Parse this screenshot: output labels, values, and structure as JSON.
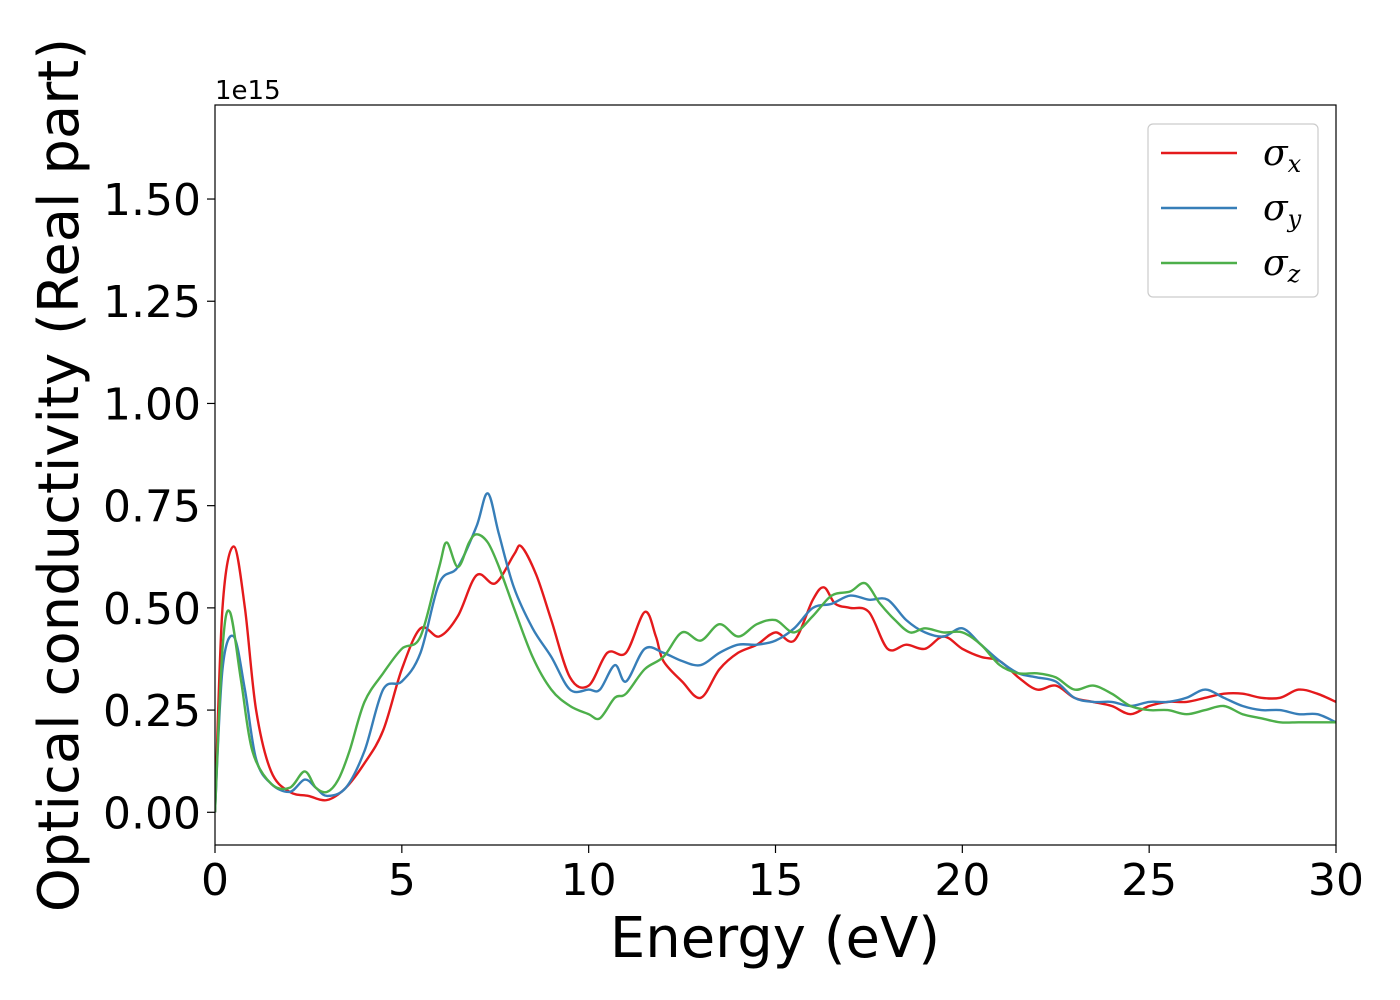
{
  "chart_data": {
    "type": "line",
    "xlabel": "Energy (eV)",
    "ylabel": "Optical conductivity (Real part)",
    "y_offset_label": "1e15",
    "xlim": [
      0,
      30
    ],
    "ylim": [
      -0.08,
      1.73
    ],
    "x_ticks": [
      0,
      5,
      10,
      15,
      20,
      25,
      30
    ],
    "x_tick_labels": [
      "0",
      "5",
      "10",
      "15",
      "20",
      "25",
      "30"
    ],
    "y_ticks": [
      0.0,
      0.25,
      0.5,
      0.75,
      1.0,
      1.25,
      1.5
    ],
    "y_tick_labels": [
      "0.00",
      "0.25",
      "0.50",
      "0.75",
      "1.00",
      "1.25",
      "1.50"
    ],
    "grid": false,
    "legend_position": "top-right",
    "series": [
      {
        "name": "σx",
        "symbol": "σ",
        "subscript": "x",
        "color": "#e41a1c",
        "x": [
          0,
          0.2,
          0.5,
          0.8,
          1.1,
          1.5,
          2.0,
          2.5,
          3.0,
          3.5,
          4.0,
          4.5,
          5.0,
          5.5,
          6.0,
          6.5,
          7.0,
          7.5,
          8.0,
          8.2,
          8.6,
          9.0,
          9.5,
          10.0,
          10.5,
          11.0,
          11.5,
          11.8,
          12.0,
          12.5,
          13.0,
          13.5,
          14.0,
          14.5,
          15.0,
          15.5,
          16.0,
          16.3,
          16.6,
          17.0,
          17.5,
          18.0,
          18.5,
          19.0,
          19.5,
          20.0,
          20.5,
          21.0,
          21.5,
          22.0,
          22.5,
          23.0,
          23.5,
          24.0,
          24.5,
          25.0,
          25.5,
          26.0,
          26.5,
          27.0,
          27.5,
          28.0,
          28.5,
          29.0,
          29.5,
          30.0
        ],
        "y": [
          0.0,
          0.5,
          0.65,
          0.5,
          0.25,
          0.1,
          0.05,
          0.04,
          0.03,
          0.06,
          0.12,
          0.2,
          0.35,
          0.45,
          0.43,
          0.48,
          0.58,
          0.56,
          0.63,
          0.65,
          0.58,
          0.47,
          0.33,
          0.31,
          0.39,
          0.39,
          0.49,
          0.43,
          0.37,
          0.32,
          0.28,
          0.35,
          0.39,
          0.41,
          0.44,
          0.42,
          0.52,
          0.55,
          0.51,
          0.5,
          0.49,
          0.4,
          0.41,
          0.4,
          0.43,
          0.4,
          0.38,
          0.37,
          0.33,
          0.3,
          0.31,
          0.28,
          0.27,
          0.26,
          0.24,
          0.26,
          0.27,
          0.27,
          0.28,
          0.29,
          0.29,
          0.28,
          0.28,
          0.3,
          0.29,
          0.27
        ]
      },
      {
        "name": "σy",
        "symbol": "σ",
        "subscript": "y",
        "color": "#377eb8",
        "x": [
          0,
          0.2,
          0.5,
          0.8,
          1.1,
          1.5,
          2.0,
          2.4,
          2.7,
          3.0,
          3.5,
          4.0,
          4.5,
          5.0,
          5.5,
          6.0,
          6.5,
          7.0,
          7.3,
          7.6,
          8.0,
          8.5,
          9.0,
          9.5,
          10.0,
          10.3,
          10.7,
          11.0,
          11.5,
          12.0,
          12.5,
          13.0,
          13.5,
          14.0,
          14.5,
          15.0,
          15.5,
          16.0,
          16.5,
          17.0,
          17.5,
          18.0,
          18.5,
          19.0,
          19.5,
          20.0,
          20.5,
          21.0,
          21.5,
          22.0,
          22.5,
          23.0,
          23.5,
          24.0,
          24.5,
          25.0,
          25.5,
          26.0,
          26.5,
          27.0,
          27.5,
          28.0,
          28.5,
          29.0,
          29.5,
          30.0
        ],
        "y": [
          0.0,
          0.35,
          0.43,
          0.3,
          0.13,
          0.07,
          0.05,
          0.08,
          0.06,
          0.04,
          0.06,
          0.15,
          0.3,
          0.32,
          0.39,
          0.56,
          0.6,
          0.7,
          0.78,
          0.68,
          0.55,
          0.45,
          0.38,
          0.3,
          0.3,
          0.3,
          0.36,
          0.32,
          0.4,
          0.39,
          0.37,
          0.36,
          0.39,
          0.41,
          0.41,
          0.42,
          0.45,
          0.5,
          0.51,
          0.53,
          0.52,
          0.52,
          0.47,
          0.44,
          0.43,
          0.45,
          0.41,
          0.37,
          0.34,
          0.33,
          0.32,
          0.28,
          0.27,
          0.27,
          0.26,
          0.27,
          0.27,
          0.28,
          0.3,
          0.28,
          0.26,
          0.25,
          0.25,
          0.24,
          0.24,
          0.22
        ]
      },
      {
        "name": "σz",
        "symbol": "σ",
        "subscript": "z",
        "color": "#4daf4a",
        "x": [
          0,
          0.2,
          0.4,
          0.7,
          1.0,
          1.5,
          2.0,
          2.4,
          2.7,
          3.0,
          3.3,
          3.6,
          4.0,
          4.5,
          5.0,
          5.5,
          6.0,
          6.2,
          6.5,
          6.8,
          7.0,
          7.3,
          7.6,
          8.0,
          8.5,
          9.0,
          9.5,
          10.0,
          10.3,
          10.7,
          11.0,
          11.5,
          12.0,
          12.5,
          13.0,
          13.5,
          14.0,
          14.5,
          15.0,
          15.5,
          16.0,
          16.5,
          17.0,
          17.4,
          17.8,
          18.2,
          18.6,
          19.0,
          19.5,
          20.0,
          20.5,
          21.0,
          21.5,
          22.0,
          22.5,
          23.0,
          23.5,
          24.0,
          24.5,
          25.0,
          25.5,
          26.0,
          26.5,
          27.0,
          27.5,
          28.0,
          28.5,
          29.0,
          29.5,
          30.0
        ],
        "y": [
          0.0,
          0.4,
          0.49,
          0.32,
          0.15,
          0.07,
          0.06,
          0.1,
          0.06,
          0.05,
          0.08,
          0.15,
          0.27,
          0.34,
          0.4,
          0.43,
          0.6,
          0.66,
          0.6,
          0.66,
          0.68,
          0.66,
          0.6,
          0.5,
          0.38,
          0.3,
          0.26,
          0.24,
          0.23,
          0.28,
          0.29,
          0.35,
          0.38,
          0.44,
          0.42,
          0.46,
          0.43,
          0.46,
          0.47,
          0.44,
          0.48,
          0.53,
          0.54,
          0.56,
          0.51,
          0.47,
          0.44,
          0.45,
          0.44,
          0.44,
          0.41,
          0.36,
          0.34,
          0.34,
          0.33,
          0.3,
          0.31,
          0.29,
          0.26,
          0.25,
          0.25,
          0.24,
          0.25,
          0.26,
          0.24,
          0.23,
          0.22,
          0.22,
          0.22,
          0.22
        ]
      }
    ]
  }
}
